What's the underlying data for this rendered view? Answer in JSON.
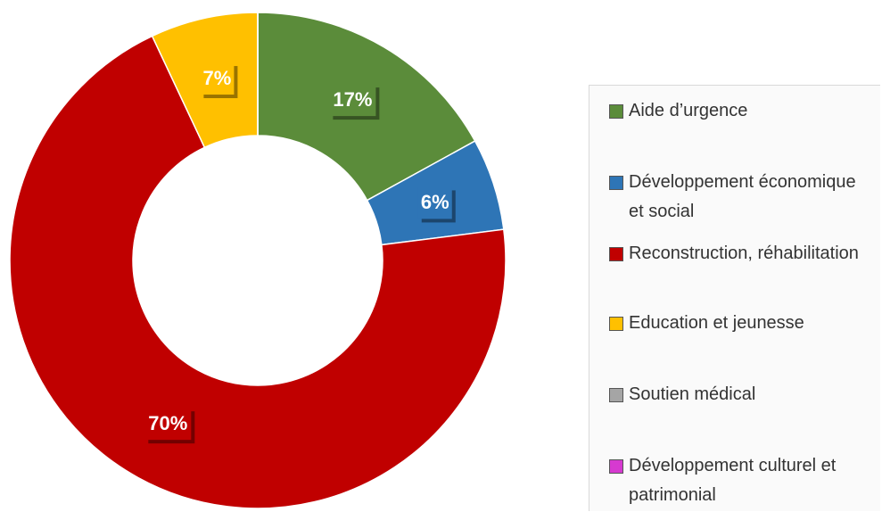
{
  "chart_data": {
    "type": "donut",
    "categories": [
      "Aide d’urgence",
      "Développement économique et social",
      "Reconstruction, réhabilitation",
      "Education et jeunesse",
      "Soutien médical",
      "Développement culturel et patrimonial"
    ],
    "values": [
      17,
      6,
      70,
      7,
      0,
      0
    ],
    "value_labels": [
      "17%",
      "6%",
      "70%",
      "7%",
      null,
      null
    ],
    "colors": [
      "#5b8c3a",
      "#2e75b6",
      "#c00000",
      "#ffc000",
      "#a5a5a5",
      "#d63ad0"
    ]
  }
}
